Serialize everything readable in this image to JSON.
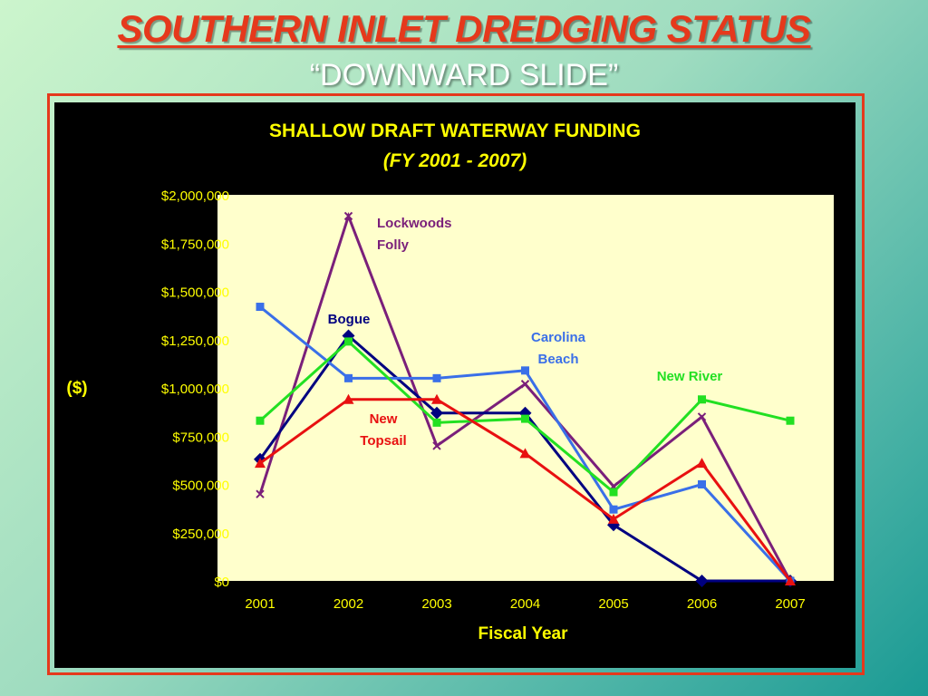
{
  "slide": {
    "title": "SOUTHERN INLET DREDGING STATUS",
    "subtitle": "“DOWNWARD SLIDE”"
  },
  "colors": {
    "title": "#e5391c",
    "frame": "#e5391c",
    "chart_bg": "#000000",
    "plot_bg": "#ffffcc",
    "chart_text": "#ffff00"
  },
  "chart_data": {
    "type": "line",
    "title": "SHALLOW DRAFT WATERWAY FUNDING",
    "subtitle": "(FY 2001 - 2007)",
    "xlabel": "Fiscal Year",
    "ylabel": "($)",
    "categories": [
      "2001",
      "2002",
      "2003",
      "2004",
      "2005",
      "2006",
      "2007"
    ],
    "ylim": [
      0,
      2000000
    ],
    "yticks": [
      0,
      250000,
      500000,
      750000,
      1000000,
      1250000,
      1500000,
      1750000,
      2000000
    ],
    "ytick_labels": [
      "$0",
      "$250,000",
      "$500,000",
      "$750,000",
      "$1,000,000",
      "$1,250,000",
      "$1,500,000",
      "$1,750,000",
      "$2,000,000"
    ],
    "grid": false,
    "series": [
      {
        "name": "Lockwoods Folly",
        "label_lines": [
          "Lockwoods",
          "Folly"
        ],
        "color": "#7a1f7a",
        "marker": "x",
        "values": [
          450000,
          1890000,
          700000,
          1020000,
          490000,
          850000,
          0
        ]
      },
      {
        "name": "Bogue",
        "label_lines": [
          "Bogue"
        ],
        "color": "#000080",
        "marker": "diamond",
        "values": [
          630000,
          1270000,
          870000,
          870000,
          290000,
          0,
          0
        ]
      },
      {
        "name": "Carolina Beach",
        "label_lines": [
          "Carolina",
          "Beach"
        ],
        "color": "#3a6fe8",
        "marker": "square",
        "values": [
          1420000,
          1050000,
          1050000,
          1090000,
          370000,
          500000,
          0
        ]
      },
      {
        "name": "New River",
        "label_lines": [
          "New River"
        ],
        "color": "#22e022",
        "marker": "square",
        "values": [
          830000,
          1240000,
          820000,
          840000,
          460000,
          940000,
          830000
        ]
      },
      {
        "name": "New Topsail",
        "label_lines": [
          "New",
          "Topsail"
        ],
        "color": "#e81010",
        "marker": "triangle",
        "values": [
          610000,
          940000,
          940000,
          660000,
          320000,
          610000,
          0
        ]
      }
    ]
  }
}
